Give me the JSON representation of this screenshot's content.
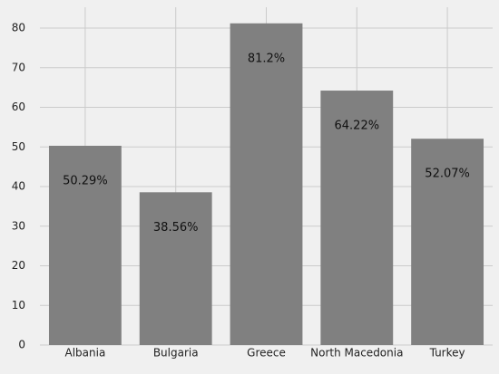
{
  "chart_data": {
    "type": "bar",
    "categories": [
      "Albania",
      "Bulgaria",
      "Greece",
      "North Macedonia",
      "Turkey"
    ],
    "values": [
      50.29,
      38.56,
      81.2,
      64.22,
      52.07
    ],
    "value_labels": [
      "50.29%",
      "38.56%",
      "81.2%",
      "64.22%",
      "52.07%"
    ],
    "color": "#808080",
    "ylim": [
      0,
      85.26
    ],
    "yticks": [
      0,
      10,
      20,
      30,
      40,
      50,
      60,
      70,
      80
    ],
    "grid": true
  }
}
